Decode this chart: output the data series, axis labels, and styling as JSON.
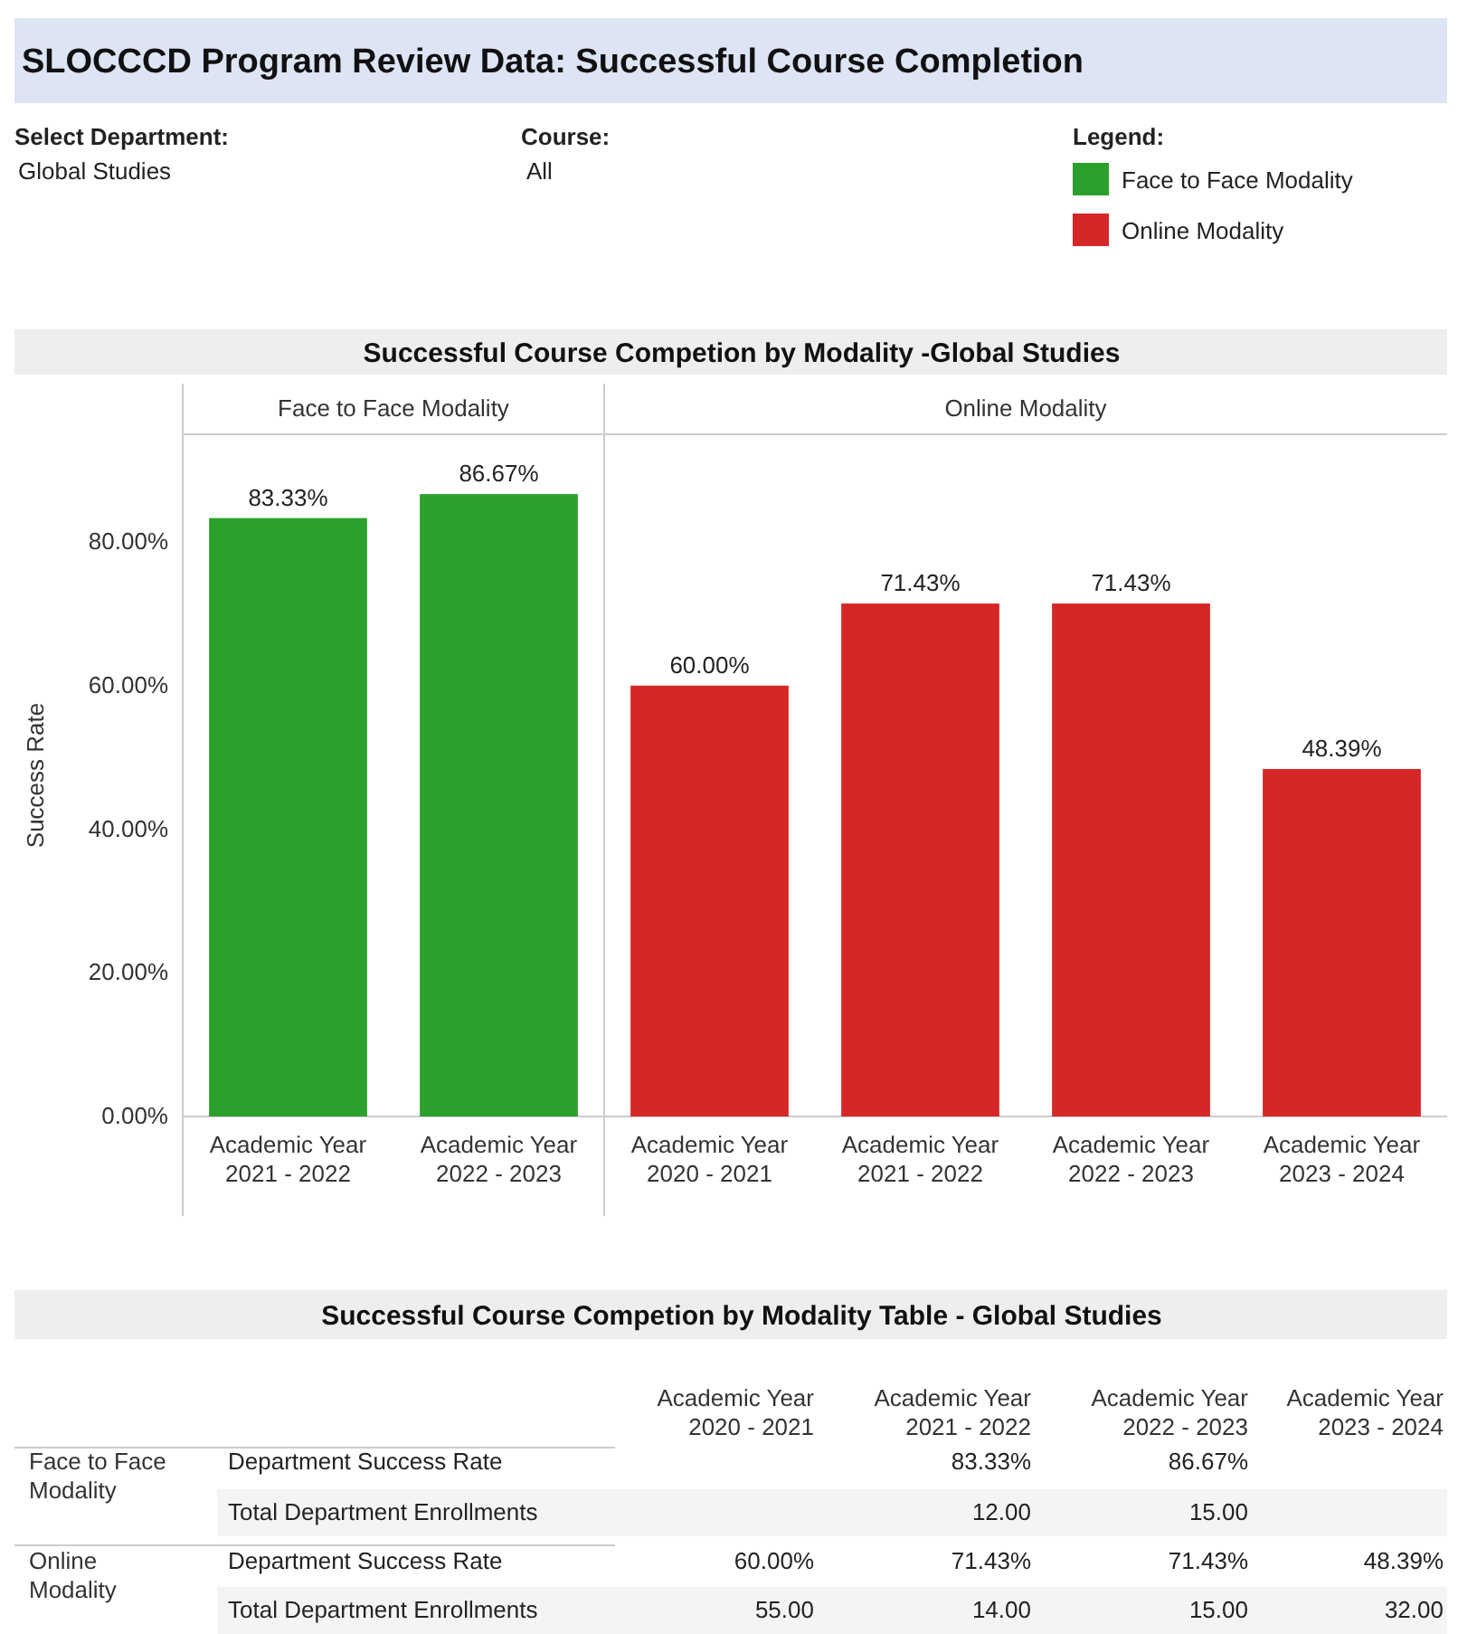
{
  "chart_data": [
    {
      "type": "other",
      "title": "SLOCCCD Program Review Data: Successful Course Completion",
      "annotations": [
        "Select Department:",
        "Global Studies",
        "Course:",
        "All"
      ]
    },
    {
      "type": "bar",
      "title": "Successful Course Competion by Modality -Global Studies",
      "ylabel": "Success Rate",
      "legend": "top right",
      "legend_title": "Legend:",
      "categories": [
        "Academic Year\n2021 - 2022",
        "Academic Year\n2022 - 2023"
      ],
      "series": [
        {
          "name": "Face to Face Modality",
          "color": "#2ca02c",
          "values": [
            83.33,
            86.67
          ],
          "value_labels": [
            "83.33%",
            "86.67%"
          ]
        }
      ],
      "ylim": [
        0,
        95
      ],
      "yticks": [
        {
          "value": 0,
          "label": "0.00%"
        },
        {
          "value": 20,
          "label": "20.00%"
        },
        {
          "value": 40,
          "label": "40.00%"
        },
        {
          "value": 60,
          "label": "60.00%"
        },
        {
          "value": 80,
          "label": "80.00%"
        }
      ]
    },
    {
      "type": "bar",
      "legend": "top right",
      "tick_labels": "x",
      "categories": [
        "Academic Year\n2020 - 2021",
        "Academic Year\n2021 - 2022",
        "Academic Year\n2022 - 2023",
        "Academic Year\n2023 - 2024"
      ],
      "series": [
        {
          "name": "Online Modality",
          "color": "#d62728",
          "values": [
            60,
            71.43,
            71.43,
            48.39
          ],
          "value_labels": [
            "60.00%",
            "71.43%",
            "71.43%",
            "48.39%"
          ]
        }
      ],
      "ylim": [
        0,
        95
      ]
    },
    {
      "type": "other",
      "title": "Successful Course Competion by Modality Table - Global Studies",
      "categories": [
        "Academic Year\n2020 - 2021",
        "Academic Year\n2021 - 2022",
        "Academic Year\n2022 - 2023",
        "Academic Year\n2023 - 2024"
      ],
      "y2_categories": [
        "Face to Face\nModality",
        null,
        "Online\nModality",
        null
      ],
      "y_categories": [
        "Department Success Rate",
        "Total Department Enrollments",
        "Department Success Rate",
        "Total Department Enrollments"
      ],
      "cell_labels": [
        [
          null,
          "83.33%",
          "86.67%",
          null
        ],
        [
          null,
          "12.00",
          "15.00",
          null
        ],
        [
          "60.00%",
          "71.43%",
          "71.43%",
          "48.39%"
        ],
        [
          "55.00",
          "14.00",
          "15.00",
          "32.00"
        ]
      ]
    }
  ]
}
